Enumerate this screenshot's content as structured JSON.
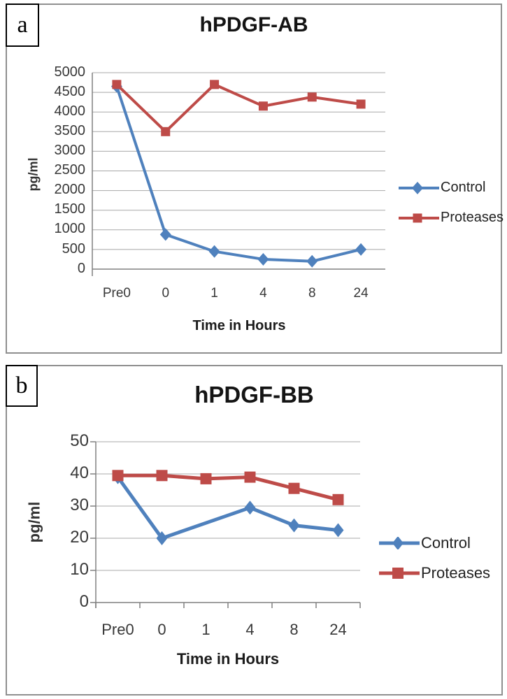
{
  "page": {
    "background": "#ffffff"
  },
  "chart_data": [
    {
      "type": "line",
      "panel_letter": "a",
      "title": "hPDGF-AB",
      "ylabel": "pg/ml",
      "xlabel": "Time in Hours",
      "categories": [
        "Pre0",
        "0",
        "1",
        "4",
        "8",
        "24"
      ],
      "ylim": [
        0,
        5000
      ],
      "ytick_step": 500,
      "yticks": [
        0,
        500,
        1000,
        1500,
        2000,
        2500,
        3000,
        3500,
        4000,
        4500,
        5000
      ],
      "grid": true,
      "legend_position": "right",
      "series": [
        {
          "name": "Control",
          "color": "#4F81BD",
          "marker": "diamond",
          "values": [
            4650,
            880,
            450,
            250,
            200,
            500
          ]
        },
        {
          "name": "Proteases",
          "color": "#BE4B48",
          "marker": "square",
          "values": [
            4700,
            3500,
            4700,
            4150,
            4380,
            4200
          ]
        }
      ]
    },
    {
      "type": "line",
      "panel_letter": "b",
      "title": "hPDGF-BB",
      "ylabel": "pg/ml",
      "xlabel": "Time in Hours",
      "categories": [
        "Pre0",
        "0",
        "1",
        "4",
        "8",
        "24"
      ],
      "ylim": [
        0,
        50
      ],
      "ytick_step": 10,
      "yticks": [
        0,
        10,
        20,
        30,
        40,
        50
      ],
      "grid": true,
      "legend_position": "right",
      "series": [
        {
          "name": "Control",
          "color": "#4F81BD",
          "marker": "diamond",
          "values": [
            39,
            20,
            null,
            29.5,
            24,
            22.5
          ]
        },
        {
          "name": "Proteases",
          "color": "#BE4B48",
          "marker": "square",
          "values": [
            39.5,
            39.5,
            38.5,
            39,
            35.5,
            32
          ]
        }
      ]
    }
  ]
}
